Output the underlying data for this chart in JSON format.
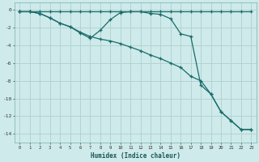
{
  "xlabel": "Humidex (Indice chaleur)",
  "bg_color": "#ceeaea",
  "grid_color": "#aed0d0",
  "line_color": "#1a6b6b",
  "xlim": [
    -0.5,
    23.5
  ],
  "ylim": [
    -15,
    0.8
  ],
  "xticks": [
    0,
    1,
    2,
    3,
    4,
    5,
    6,
    7,
    8,
    9,
    10,
    11,
    12,
    13,
    14,
    15,
    16,
    17,
    18,
    19,
    20,
    21,
    22,
    23
  ],
  "yticks": [
    0,
    -2,
    -4,
    -6,
    -8,
    -10,
    -12,
    -14
  ],
  "line1_x": [
    0,
    1,
    2,
    3,
    4,
    5,
    6,
    7,
    8,
    9,
    10,
    11,
    12,
    13,
    14,
    15,
    16,
    17,
    18,
    19,
    20,
    21,
    22,
    23
  ],
  "line1_y": [
    -0.2,
    -0.2,
    -0.2,
    -0.2,
    -0.2,
    -0.2,
    -0.2,
    -0.2,
    -0.2,
    -0.2,
    -0.2,
    -0.2,
    -0.2,
    -0.2,
    -0.2,
    -0.2,
    -0.2,
    -0.2,
    -0.2,
    -0.2,
    -0.2,
    -0.2,
    -0.2,
    -0.2
  ],
  "line2_x": [
    0,
    1,
    2,
    3,
    4,
    5,
    6,
    7,
    8,
    9,
    10,
    11,
    12,
    13,
    14,
    15,
    16,
    17,
    18,
    19,
    20,
    21,
    22,
    23
  ],
  "line2_y": [
    -0.2,
    -0.2,
    -0.4,
    -0.9,
    -1.5,
    -1.9,
    -2.6,
    -3.2,
    -2.3,
    -1.1,
    -0.3,
    -0.2,
    -0.2,
    -0.4,
    -0.5,
    -1.0,
    -2.7,
    -3.0,
    -8.5,
    -9.5,
    -11.5,
    -12.5,
    -13.5,
    -13.5
  ],
  "line3_x": [
    0,
    1,
    2,
    3,
    4,
    5,
    6,
    7,
    8,
    9,
    10,
    11,
    12,
    13,
    14,
    15,
    16,
    17,
    18,
    19,
    20,
    21,
    22,
    23
  ],
  "line3_y": [
    -0.2,
    -0.2,
    -0.4,
    -0.9,
    -1.5,
    -1.9,
    -2.5,
    -3.0,
    -3.3,
    -3.5,
    -3.8,
    -4.2,
    -4.6,
    -5.1,
    -5.5,
    -6.0,
    -6.5,
    -7.5,
    -8.0,
    -9.5,
    -11.5,
    -12.5,
    -13.5,
    -13.5
  ]
}
